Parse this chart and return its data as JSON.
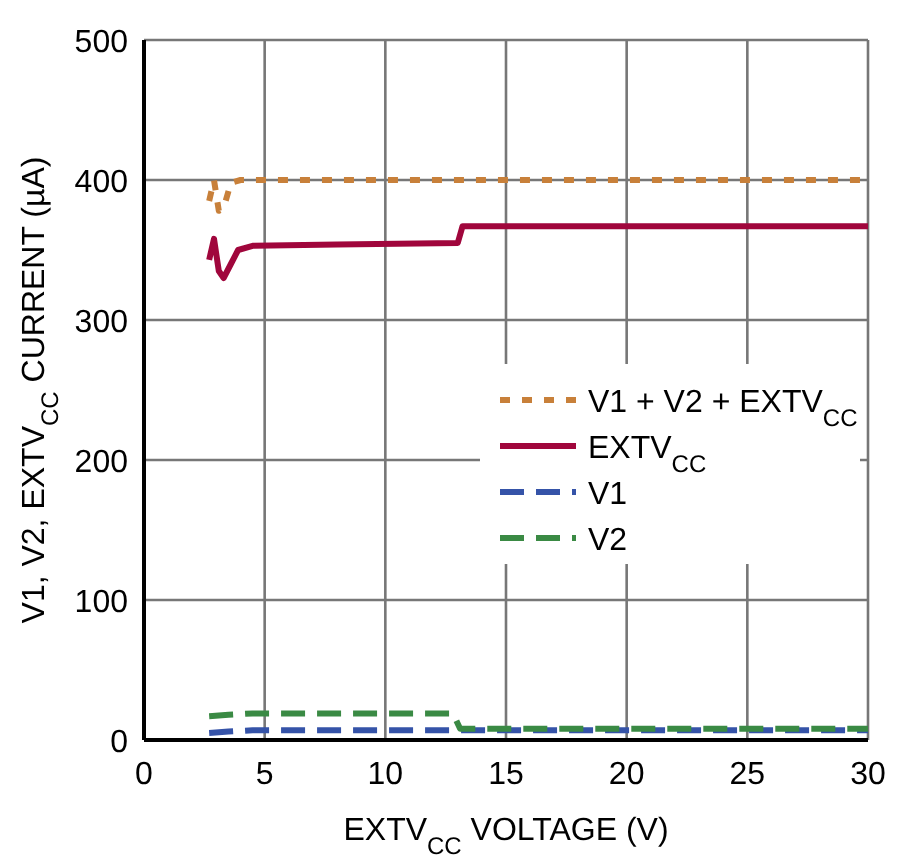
{
  "chart_data": {
    "type": "line",
    "xlabel": "EXTV$_{CC}$ VOLTAGE (V)",
    "ylabel": "V1, V2, EXTV$_{CC}$ CURRENT (µA)",
    "xlim": [
      0,
      30
    ],
    "ylim": [
      0,
      500
    ],
    "xticks": [
      0,
      5,
      10,
      15,
      20,
      25,
      30
    ],
    "yticks": [
      0,
      100,
      200,
      300,
      400,
      500
    ],
    "grid": true,
    "legend": "right",
    "series": [
      {
        "name": "V1 + V2 + EXTV$_{CC}$",
        "color": "#c8803a",
        "line_style": "dotted",
        "x": [
          2.7,
          2.9,
          3.1,
          3.3,
          3.6,
          4,
          10,
          20,
          30
        ],
        "values": [
          385,
          400,
          378,
          380,
          398,
          400,
          400,
          400,
          400
        ]
      },
      {
        "name": "EXTV$_{CC}$",
        "color": "#a0063c",
        "line_style": "solid",
        "x": [
          2.7,
          2.9,
          3.1,
          3.3,
          3.6,
          3.9,
          4.5,
          8,
          13,
          13.2,
          20,
          30
        ],
        "values": [
          343,
          358,
          335,
          330,
          340,
          350,
          353,
          354,
          355,
          367,
          367,
          367
        ]
      },
      {
        "name": "V1",
        "color": "#3553a8",
        "line_style": "dashed",
        "x": [
          2.7,
          3.5,
          4.5,
          13,
          20,
          30
        ],
        "values": [
          5,
          6,
          7,
          7,
          7,
          7
        ]
      },
      {
        "name": "V2",
        "color": "#3a8a44",
        "line_style": "dashed",
        "x": [
          2.7,
          3.5,
          4.5,
          12.8,
          13.1,
          20,
          30
        ],
        "values": [
          17,
          18,
          19,
          19,
          8,
          8,
          8
        ]
      }
    ]
  }
}
